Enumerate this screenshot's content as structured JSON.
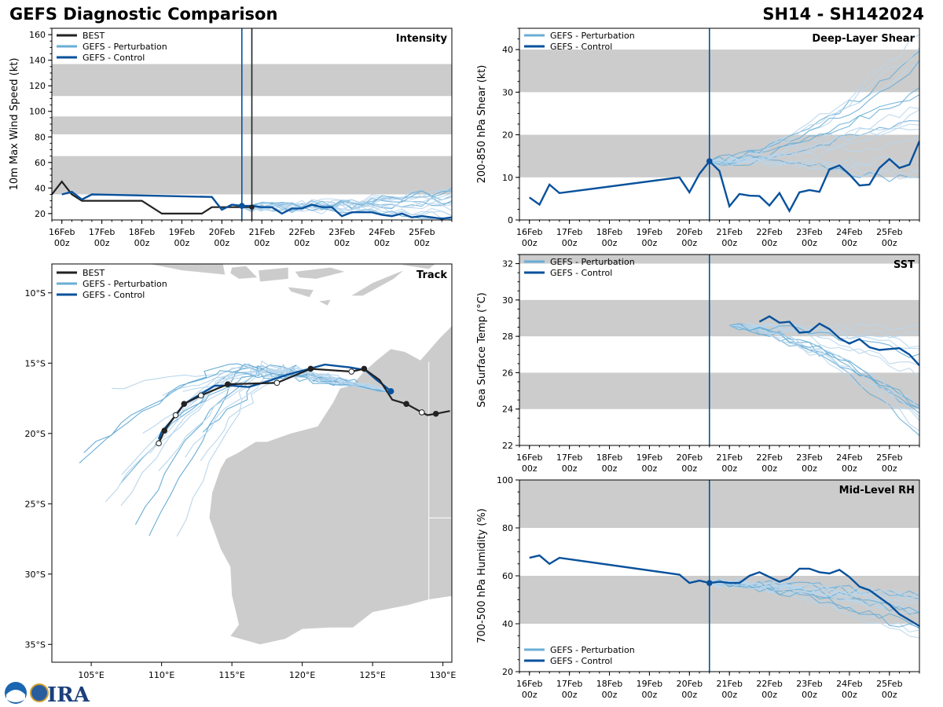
{
  "title_left": "GEFS Diagnostic Comparison",
  "title_right": "SH14 - SH142024",
  "colors": {
    "best": "#222222",
    "pert": "#6aaed6",
    "pert_light": "#b9d6ec",
    "control": "#08519c",
    "band": "#cccccc",
    "land": "#cccccc"
  },
  "legend": {
    "best": "BEST",
    "pert": "GEFS - Perturbation",
    "control": "GEFS - Control"
  },
  "time_ticks": [
    "16Feb\n00z",
    "17Feb\n00z",
    "18Feb\n00z",
    "19Feb\n00z",
    "20Feb\n00z",
    "21Feb\n00z",
    "22Feb\n00z",
    "23Feb\n00z",
    "24Feb\n00z",
    "25Feb\n00z"
  ],
  "chart_data": [
    {
      "id": "intensity",
      "type": "line",
      "title": "Intensity",
      "ylabel": "10m Max Wind Speed (kt)",
      "xlim": [
        -0.25,
        9.75
      ],
      "ylim": [
        15,
        165
      ],
      "yticks": [
        20,
        40,
        60,
        80,
        100,
        120,
        140,
        160
      ],
      "bands": [
        [
          35,
          65
        ],
        [
          82,
          96
        ],
        [
          112,
          137
        ]
      ],
      "vlines": [
        {
          "x": 4.5,
          "kind": "control"
        },
        {
          "x": 4.75,
          "kind": "best"
        }
      ],
      "best": {
        "x": [
          -0.25,
          0,
          0.25,
          0.5,
          1,
          2,
          2.5,
          3,
          3.5,
          3.75,
          4,
          4.25,
          4.5,
          4.75
        ],
        "y": [
          35,
          45,
          35,
          30,
          30,
          30,
          20,
          20,
          20,
          25,
          25,
          25,
          25,
          25
        ]
      },
      "control": {
        "x": [
          0,
          0.25,
          0.5,
          0.75,
          3.75,
          4,
          4.25,
          4.5,
          4.75,
          5,
          5.25,
          5.5,
          5.75,
          6,
          6.25,
          6.5,
          6.75,
          7,
          7.25,
          7.5,
          7.75,
          8,
          8.25,
          8.5,
          8.75,
          9,
          9.25,
          9.5,
          9.75
        ],
        "y": [
          35,
          37,
          31,
          35,
          33,
          23,
          27,
          26,
          26,
          25,
          25,
          20,
          24,
          24,
          27,
          25,
          25,
          18,
          21,
          21,
          21,
          19,
          18,
          20,
          17,
          18,
          17,
          16,
          17
        ]
      },
      "members": 16,
      "member_start": 4.5,
      "member_end": 9.75,
      "member_y0": 25,
      "member_spread": [
        15,
        40
      ]
    },
    {
      "id": "shear",
      "type": "line",
      "title": "Deep-Layer Shear",
      "ylabel": "200-850 hPa Shear (kt)",
      "xlim": [
        -0.25,
        9.75
      ],
      "ylim": [
        0,
        45
      ],
      "yticks": [
        0,
        10,
        20,
        30,
        40
      ],
      "bands": [
        [
          10,
          20
        ],
        [
          30,
          40
        ]
      ],
      "vlines": [
        {
          "x": 4.5,
          "kind": "control"
        }
      ],
      "control": {
        "x": [
          0,
          0.25,
          0.5,
          0.75,
          3.75,
          4,
          4.25,
          4.5,
          4.75,
          5,
          5.25,
          5.5,
          5.75,
          6,
          6.25,
          6.5,
          6.75,
          7,
          7.25,
          7.5,
          7.75,
          8,
          8.25,
          8.5,
          8.75,
          9,
          9.25,
          9.5,
          9.75
        ],
        "y": [
          5.3,
          3.6,
          8.3,
          6.3,
          10,
          6.5,
          10.8,
          13.8,
          11.5,
          3.2,
          6.1,
          5.7,
          5.6,
          3.4,
          6.3,
          2.1,
          6.5,
          7,
          6.6,
          11.9,
          12.8,
          10.7,
          8.1,
          8.3,
          12.2,
          14.3,
          12.2,
          13,
          18.5
        ]
      },
      "members": 18,
      "member_start": 4.5,
      "member_end": 9.75,
      "member_y0": 13.8,
      "member_spread": [
        8,
        45
      ]
    },
    {
      "id": "sst",
      "type": "line",
      "title": "SST",
      "ylabel": "Sea Surface Temp (°C)",
      "xlim": [
        -0.25,
        9.75
      ],
      "ylim": [
        22,
        32.5
      ],
      "yticks": [
        22,
        24,
        26,
        28,
        30,
        32
      ],
      "bands": [
        [
          24,
          26
        ],
        [
          28,
          30
        ],
        [
          32,
          32.5
        ]
      ],
      "vlines": [
        {
          "x": 4.5,
          "kind": "control"
        }
      ],
      "control": {
        "x": [
          5.75,
          6,
          6.25,
          6.5,
          6.75,
          7,
          7.25,
          7.5,
          7.75,
          8,
          8.25,
          8.5,
          8.75,
          9,
          9.25,
          9.5,
          9.75
        ],
        "y": [
          28.8,
          29.1,
          28.75,
          28.8,
          28.2,
          28.25,
          28.7,
          28.4,
          27.9,
          27.6,
          27.85,
          27.4,
          27.25,
          27.3,
          27.35,
          27,
          26.4
        ]
      },
      "members": 16,
      "member_start": 5,
      "member_end": 9.75,
      "member_y0": 28.6,
      "member_spread": [
        22.6,
        28.6
      ]
    },
    {
      "id": "rh",
      "type": "line",
      "title": "Mid-Level RH",
      "ylabel": "700-500 hPa Humidity (%)",
      "xlim": [
        -0.25,
        9.75
      ],
      "ylim": [
        20,
        100
      ],
      "yticks": [
        20,
        40,
        60,
        80,
        100
      ],
      "bands": [
        [
          40,
          60
        ],
        [
          80,
          100
        ]
      ],
      "vlines": [
        {
          "x": 4.5,
          "kind": "control"
        }
      ],
      "control": {
        "x": [
          0,
          0.25,
          0.5,
          0.75,
          3.75,
          4,
          4.25,
          4.5,
          4.75,
          5,
          5.25,
          5.5,
          5.75,
          6,
          6.25,
          6.5,
          6.75,
          7,
          7.25,
          7.5,
          7.75,
          8,
          8.25,
          8.5,
          8.75,
          9,
          9.25,
          9.5,
          9.75
        ],
        "y": [
          67.5,
          68.5,
          65,
          67.5,
          60.5,
          57,
          58,
          57,
          57.5,
          57,
          57,
          60,
          61.5,
          59.5,
          57.5,
          59,
          63,
          63,
          61.5,
          61,
          62.5,
          59.5,
          55.5,
          54,
          51,
          48,
          44,
          41.5,
          39
        ]
      },
      "members": 18,
      "member_start": 4.5,
      "member_end": 9.75,
      "member_y0": 57,
      "member_spread": [
        32,
        53
      ]
    },
    {
      "id": "track",
      "type": "map",
      "title": "Track",
      "lon_ticks": [
        "105°E",
        "110°E",
        "115°E",
        "120°E",
        "125°E",
        "130°E"
      ],
      "lat_ticks": [
        "10°S",
        "15°S",
        "20°S",
        "25°S",
        "30°S",
        "35°S"
      ],
      "best": {
        "lon": [
          109.8,
          110.2,
          111,
          111.6,
          112.8,
          114.7,
          118.2,
          120.6,
          123.5,
          124.4,
          125.5,
          126.4,
          127.4,
          128.5,
          128.9,
          129.5,
          130.5
        ],
        "lat": [
          -20.7,
          -19.8,
          -18.7,
          -17.9,
          -17.3,
          -16.5,
          -16.4,
          -15.4,
          -15.6,
          -15.4,
          -16.2,
          -17.6,
          -17.9,
          -18.5,
          -18.7,
          -18.6,
          -18.4
        ]
      },
      "control": {
        "lon": [
          126.3,
          125.7,
          125.3,
          124.5,
          123.4,
          122.5,
          121.6,
          120.5,
          119,
          117.5,
          116.2,
          115,
          113.8,
          112.6,
          111.6,
          111.1,
          110.6,
          110,
          109.8
        ],
        "lat": [
          -17.0,
          -16.5,
          -16.2,
          -15.5,
          -15.3,
          -15.2,
          -15.1,
          -15.4,
          -15.8,
          -16.3,
          -16.7,
          -16.6,
          -16.6,
          -17.3,
          -17.9,
          -18.6,
          -19.2,
          -19.9,
          -20.4
        ]
      },
      "members": 20
    }
  ]
}
